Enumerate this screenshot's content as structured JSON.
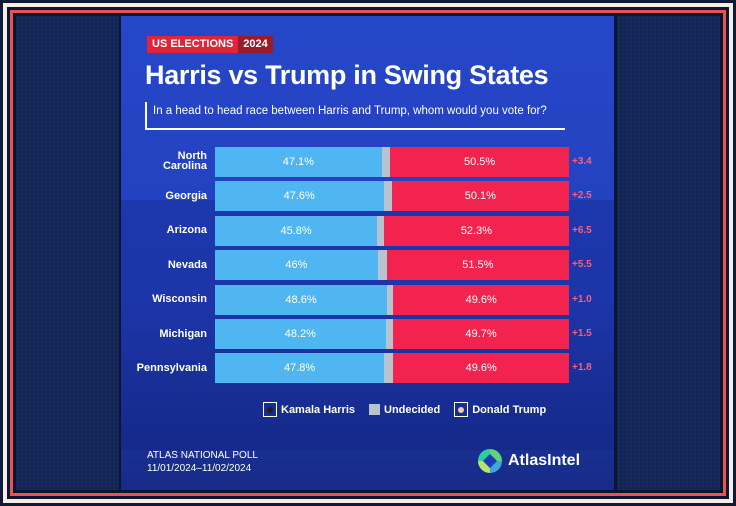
{
  "tag": {
    "left": "US ELECTIONS",
    "right": "2024"
  },
  "title": "Harris vs Trump in Swing States",
  "subtitle": "In a head to head race between Harris and Trump, whom would you vote for?",
  "colors": {
    "harris": "#4fb6f2",
    "undecided": "#b9c2cf",
    "trump": "#f2244f",
    "background": "#2647c9"
  },
  "legend": {
    "harris": "Kamala Harris",
    "undecided": "Undecided",
    "trump": "Donald Trump"
  },
  "footer": {
    "source": "ATLAS NATIONAL POLL",
    "dates": "11/01/2024–11/02/2024",
    "logo": "AtlasIntel"
  },
  "chart_data": {
    "type": "bar",
    "orientation": "horizontal-stacked",
    "title": "Harris vs Trump in Swing States",
    "categories": [
      "North Carolina",
      "Georgia",
      "Arizona",
      "Nevada",
      "Wisconsin",
      "Michigan",
      "Pennsylvania"
    ],
    "category_lines": [
      [
        "North",
        "Carolina"
      ],
      [
        "Georgia"
      ],
      [
        "Arizona"
      ],
      [
        "Nevada"
      ],
      [
        "Wisconsin"
      ],
      [
        "Michigan"
      ],
      [
        "Pennsylvania"
      ]
    ],
    "series": [
      {
        "name": "Kamala Harris",
        "values": [
          47.1,
          47.6,
          45.8,
          46,
          48.6,
          48.2,
          47.8
        ],
        "labels": [
          "47.1%",
          "47.6%",
          "45.8%",
          "46%",
          "48.6%",
          "48.2%",
          "47.8%"
        ]
      },
      {
        "name": "Undecided",
        "values": [
          2.4,
          2.3,
          1.9,
          2.5,
          1.8,
          2.1,
          2.6
        ]
      },
      {
        "name": "Donald Trump",
        "values": [
          50.5,
          50.1,
          52.3,
          51.5,
          49.6,
          49.7,
          49.6
        ],
        "labels": [
          "50.5%",
          "50.1%",
          "52.3%",
          "51.5%",
          "49.6%",
          "49.7%",
          "49.6%"
        ]
      }
    ],
    "margins": [
      "+3.4",
      "+2.5",
      "+6.5",
      "+5.5",
      "+1.0",
      "+1.5",
      "+1.8"
    ],
    "xlim": [
      0,
      100
    ],
    "legend_position": "bottom"
  }
}
